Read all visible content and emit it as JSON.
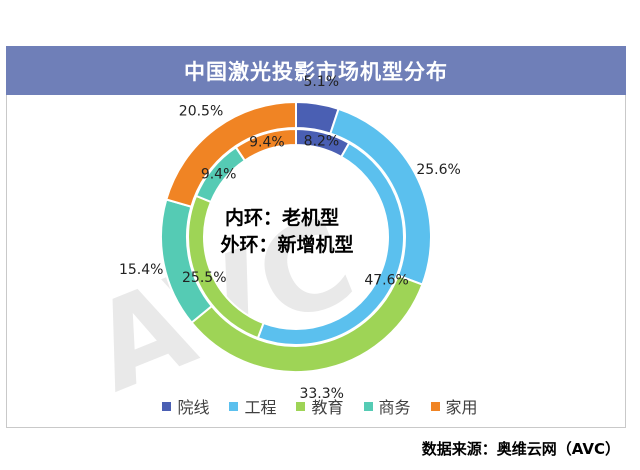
{
  "chart_data": {
    "type": "pie",
    "subtype": "nested-donut",
    "title": "中国激光投影市场机型分布",
    "center_label": {
      "inner": "内环：老机型",
      "outer": "外环：新增机型"
    },
    "categories": [
      "院线",
      "工程",
      "教育",
      "商务",
      "家用"
    ],
    "colors": [
      "#4a5fb3",
      "#5bc0ee",
      "#9ed456",
      "#55cbb4",
      "#f08424"
    ],
    "series": [
      {
        "ring": "inner",
        "values": [
          8.2,
          47.6,
          25.5,
          9.4,
          9.4
        ],
        "labels": [
          "8.2%",
          "47.6%",
          "25.5%",
          "9.4%",
          "9.4%"
        ]
      },
      {
        "ring": "outer",
        "values": [
          5.1,
          25.6,
          33.3,
          15.4,
          20.5
        ],
        "labels": [
          "5.1%",
          "25.6%",
          "33.3%",
          "15.4%",
          "20.5%"
        ]
      }
    ],
    "legend_position": "bottom",
    "watermark": "AVC"
  },
  "source": "数据来源：奥维云网（AVC）"
}
